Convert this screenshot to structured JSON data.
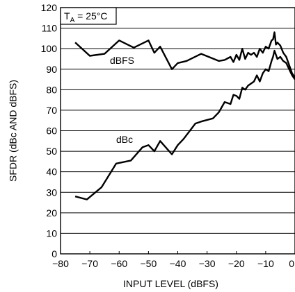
{
  "chart_data": {
    "type": "line",
    "xlabel": "INPUT LEVEL (dBFS)",
    "ylabel": "SFDR (dBc AND dBFS)",
    "condition": {
      "main": "T",
      "sub": "A",
      "rest": " = 25°C"
    },
    "xlim": [
      -80,
      0
    ],
    "ylim": [
      0,
      120
    ],
    "x_ticks": [
      -80,
      -70,
      -60,
      -50,
      -40,
      -30,
      -20,
      -10,
      0
    ],
    "x_tick_labels": [
      "−80",
      "−70",
      "−60",
      "−50",
      "−40",
      "−30",
      "−20",
      "−10",
      "0"
    ],
    "y_ticks": [
      0,
      10,
      20,
      30,
      40,
      50,
      60,
      70,
      80,
      90,
      100,
      110,
      120
    ],
    "y_tick_labels": [
      "0",
      "10",
      "20",
      "30",
      "40",
      "50",
      "60",
      "70",
      "80",
      "90",
      "100",
      "110",
      "120"
    ],
    "grid": "horizontal",
    "colors": {
      "line": "#000000",
      "grid": "#000000",
      "background": "#ffffff"
    },
    "series": [
      {
        "name": "dBFS",
        "x": [
          -75,
          -70,
          -65,
          -60,
          -55,
          -50,
          -48,
          -46,
          -42,
          -40,
          -37,
          -32,
          -26,
          -24,
          -22,
          -21,
          -20,
          -19,
          -18,
          -17,
          -16,
          -15,
          -14,
          -13,
          -12,
          -11,
          -10,
          -9,
          -8,
          -7.5,
          -7,
          -6.5,
          -6,
          -5,
          -4,
          -3,
          -2,
          -1,
          0
        ],
        "y": [
          103,
          96.5,
          97.5,
          104,
          100.5,
          104,
          98,
          101,
          90,
          93,
          94,
          97.5,
          94,
          94.5,
          96,
          93.5,
          97,
          94.5,
          100,
          95,
          98,
          97,
          98,
          96,
          100,
          98,
          101,
          100,
          104,
          104.5,
          108,
          102,
          103,
          101.5,
          98,
          96,
          92,
          88,
          86
        ]
      },
      {
        "name": "dBc",
        "x": [
          -75,
          -71,
          -66,
          -61,
          -56,
          -52,
          -50,
          -48,
          -46,
          -42,
          -40,
          -38,
          -34,
          -32,
          -28,
          -26,
          -24,
          -22,
          -21,
          -20,
          -19,
          -18,
          -17,
          -16,
          -15,
          -14,
          -13,
          -12,
          -11,
          -10,
          -9,
          -8,
          -7.5,
          -7,
          -6.5,
          -6,
          -5,
          -4,
          -3,
          -2,
          -1,
          0
        ],
        "y": [
          28,
          26.5,
          32.5,
          44,
          45.5,
          52,
          53,
          50,
          55,
          48.5,
          53,
          56,
          63.5,
          64.5,
          66,
          69,
          74,
          73,
          77.5,
          77,
          75.5,
          81,
          80,
          82,
          83,
          84,
          87,
          84,
          88,
          90,
          89,
          94,
          96,
          99,
          97,
          95,
          96,
          94,
          93,
          90,
          87,
          85
        ]
      }
    ]
  }
}
